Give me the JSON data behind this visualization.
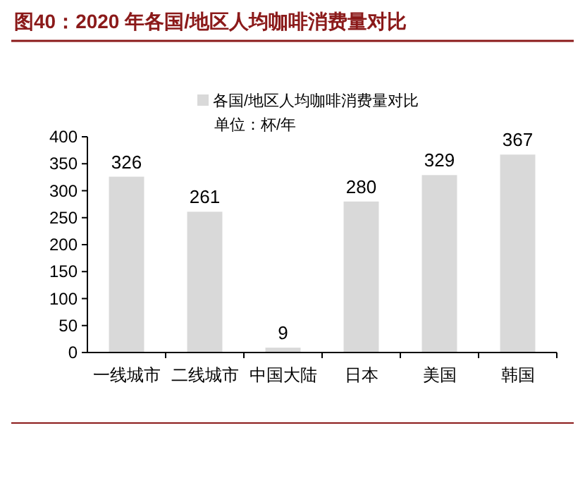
{
  "chart_data": {
    "type": "bar",
    "title": "图40：2020 年各国/地区人均咖啡消费量对比",
    "categories": [
      "一线城市",
      "二线城市",
      "中国大陆",
      "日本",
      "美国",
      "韩国"
    ],
    "series": [
      {
        "name": "各国/地区人均咖啡消费量对比",
        "color": "#d9d9d9",
        "values": [
          326,
          261,
          9,
          280,
          329,
          367
        ]
      }
    ],
    "annotations": [
      "单位：杯/年"
    ],
    "ylim": [
      0,
      400
    ],
    "yticks": [
      0,
      50,
      100,
      150,
      200,
      250,
      300,
      350,
      400
    ],
    "data_labels": true,
    "legend": "top"
  }
}
